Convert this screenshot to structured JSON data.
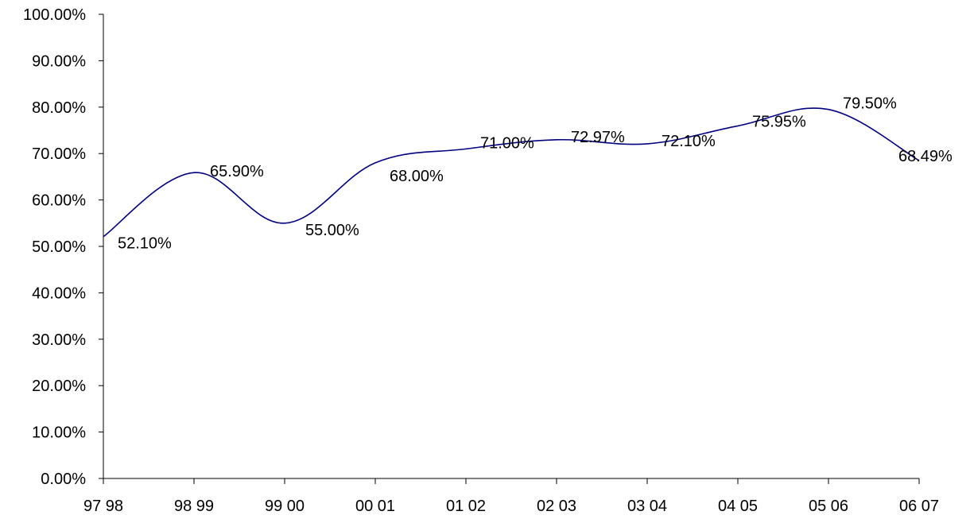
{
  "chart_data": {
    "type": "line",
    "categories": [
      "97 98",
      "98 99",
      "99 00",
      "00 01",
      "01 02",
      "02 03",
      "03 04",
      "04 05",
      "05 06",
      "06 07"
    ],
    "series": [
      {
        "values": [
          52.1,
          65.9,
          55.0,
          68.0,
          71.0,
          72.97,
          72.1,
          75.95,
          79.5,
          68.49
        ],
        "value_labels": [
          "52.10%",
          "65.90%",
          "55.00%",
          "68.00%",
          "71.00%",
          "72.97%",
          "72.10%",
          "75.95%",
          "79.50%",
          "68.49%"
        ],
        "color": "#000080"
      }
    ],
    "yticks": [
      "0.00%",
      "10.00%",
      "20.00%",
      "30.00%",
      "40.00%",
      "50.00%",
      "60.00%",
      "70.00%",
      "80.00%",
      "90.00%",
      "100.00%"
    ],
    "ylim": [
      0,
      100
    ],
    "smoothed": true,
    "grid": false,
    "legend": "none",
    "title": "",
    "xlabel": "",
    "ylabel": ""
  }
}
